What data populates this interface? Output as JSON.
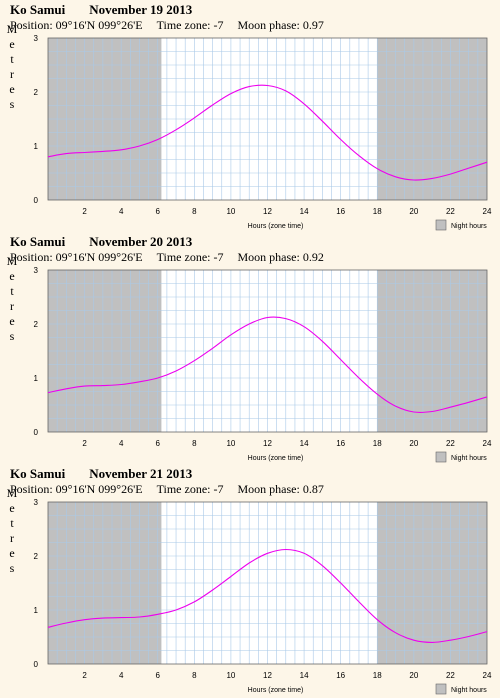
{
  "chart_data": [
    {
      "type": "line",
      "location": "Ko Samui",
      "date": "November 19 2013",
      "position": "Position: 09°16'N 099°26'E",
      "timezone": "Time zone: -7",
      "moonphase": "Moon phase: 0.97",
      "ylabel": "Metres",
      "xlabel": "Hours (zone time)",
      "legend": "Night hours",
      "xlim": [
        0,
        24
      ],
      "ylim": [
        0,
        3
      ],
      "x_ticks": [
        2,
        4,
        6,
        8,
        10,
        12,
        14,
        16,
        18,
        20,
        22,
        24
      ],
      "y_ticks": [
        0,
        1,
        2,
        3
      ],
      "night": [
        [
          0,
          6.2
        ],
        [
          18.0,
          24
        ]
      ],
      "grid": true,
      "series": [
        {
          "color": "#ee00ee",
          "x": [
            0,
            1,
            2,
            3,
            4,
            5,
            6,
            7,
            8,
            9,
            10,
            11,
            12,
            13,
            14,
            15,
            16,
            17,
            18,
            19,
            20,
            21,
            22,
            23,
            24
          ],
          "y": [
            0.8,
            0.86,
            0.88,
            0.9,
            0.93,
            1.0,
            1.12,
            1.3,
            1.52,
            1.76,
            1.97,
            2.1,
            2.12,
            2.02,
            1.78,
            1.46,
            1.12,
            0.82,
            0.58,
            0.43,
            0.37,
            0.4,
            0.48,
            0.59,
            0.7
          ]
        }
      ]
    },
    {
      "type": "line",
      "location": "Ko Samui",
      "date": "November 20 2013",
      "position": "Position: 09°16'N 099°26'E",
      "timezone": "Time zone: -7",
      "moonphase": "Moon phase: 0.92",
      "ylabel": "Metres",
      "xlabel": "Hours (zone time)",
      "legend": "Night hours",
      "xlim": [
        0,
        24
      ],
      "ylim": [
        0,
        3
      ],
      "x_ticks": [
        2,
        4,
        6,
        8,
        10,
        12,
        14,
        16,
        18,
        20,
        22,
        24
      ],
      "y_ticks": [
        0,
        1,
        2,
        3
      ],
      "night": [
        [
          0,
          6.2
        ],
        [
          18.0,
          24
        ]
      ],
      "grid": true,
      "series": [
        {
          "color": "#ee00ee",
          "x": [
            0,
            1,
            2,
            3,
            4,
            5,
            6,
            7,
            8,
            9,
            10,
            11,
            12,
            13,
            14,
            15,
            16,
            17,
            18,
            19,
            20,
            21,
            22,
            23,
            24
          ],
          "y": [
            0.73,
            0.8,
            0.85,
            0.86,
            0.88,
            0.93,
            1.0,
            1.13,
            1.32,
            1.55,
            1.8,
            2.0,
            2.12,
            2.1,
            1.95,
            1.68,
            1.34,
            1.0,
            0.7,
            0.48,
            0.37,
            0.38,
            0.46,
            0.55,
            0.65
          ]
        }
      ]
    },
    {
      "type": "line",
      "location": "Ko Samui",
      "date": "November 21 2013",
      "position": "Position: 09°16'N 099°26'E",
      "timezone": "Time zone: -7",
      "moonphase": "Moon phase: 0.87",
      "ylabel": "Metres",
      "xlabel": "Hours (zone time)",
      "legend": "Night hours",
      "xlim": [
        0,
        24
      ],
      "ylim": [
        0,
        3
      ],
      "x_ticks": [
        2,
        4,
        6,
        8,
        10,
        12,
        14,
        16,
        18,
        20,
        22,
        24
      ],
      "y_ticks": [
        0,
        1,
        2,
        3
      ],
      "night": [
        [
          0,
          6.2
        ],
        [
          18.0,
          24
        ]
      ],
      "grid": true,
      "series": [
        {
          "color": "#ee00ee",
          "x": [
            0,
            1,
            2,
            3,
            4,
            5,
            6,
            7,
            8,
            9,
            10,
            11,
            12,
            13,
            14,
            15,
            16,
            17,
            18,
            19,
            20,
            21,
            22,
            23,
            24
          ],
          "y": [
            0.68,
            0.76,
            0.82,
            0.85,
            0.86,
            0.87,
            0.92,
            1.0,
            1.15,
            1.37,
            1.62,
            1.87,
            2.05,
            2.12,
            2.05,
            1.82,
            1.5,
            1.15,
            0.82,
            0.58,
            0.44,
            0.4,
            0.44,
            0.51,
            0.6
          ]
        }
      ]
    }
  ]
}
